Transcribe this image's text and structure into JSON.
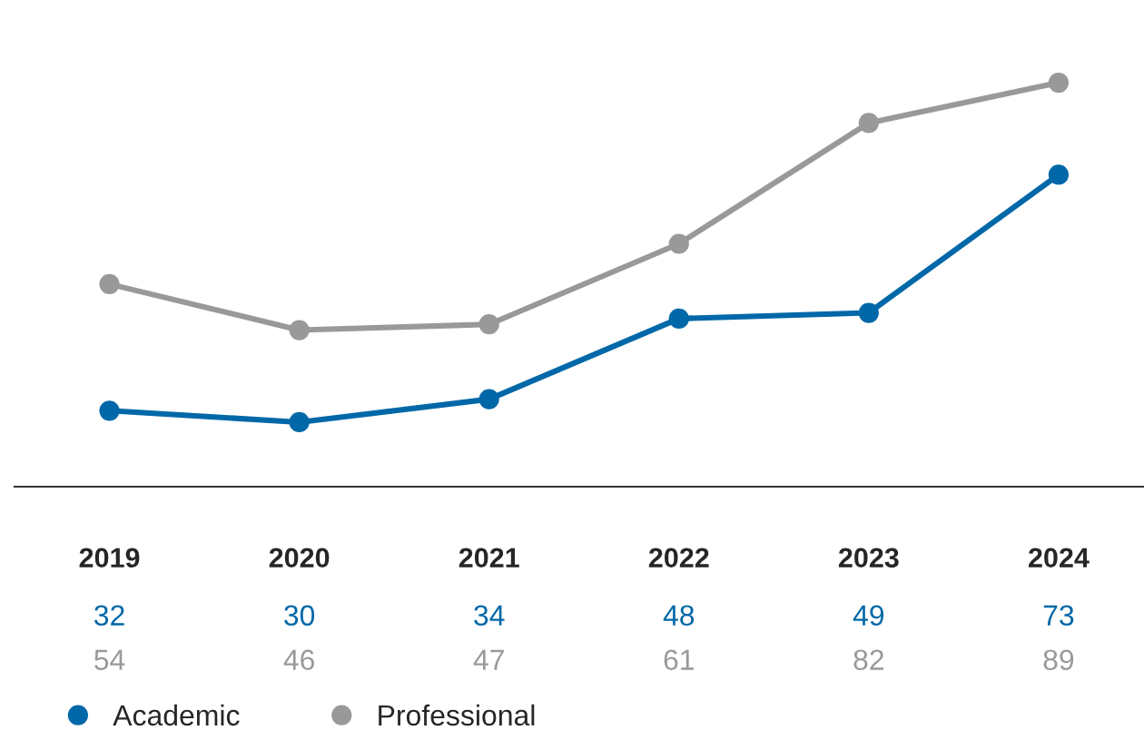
{
  "chart_data": {
    "type": "line",
    "categories": [
      "2019",
      "2020",
      "2021",
      "2022",
      "2023",
      "2024"
    ],
    "series": [
      {
        "name": "Academic",
        "color": "#0068a8",
        "values": [
          32,
          30,
          34,
          48,
          49,
          73
        ]
      },
      {
        "name": "Professional",
        "color": "#999999",
        "values": [
          54,
          46,
          47,
          61,
          82,
          89
        ]
      }
    ],
    "tick_labels": "x",
    "data_labels": true,
    "marker": "circle",
    "line_style": "solid",
    "grid": false,
    "legend": "bottom left"
  }
}
